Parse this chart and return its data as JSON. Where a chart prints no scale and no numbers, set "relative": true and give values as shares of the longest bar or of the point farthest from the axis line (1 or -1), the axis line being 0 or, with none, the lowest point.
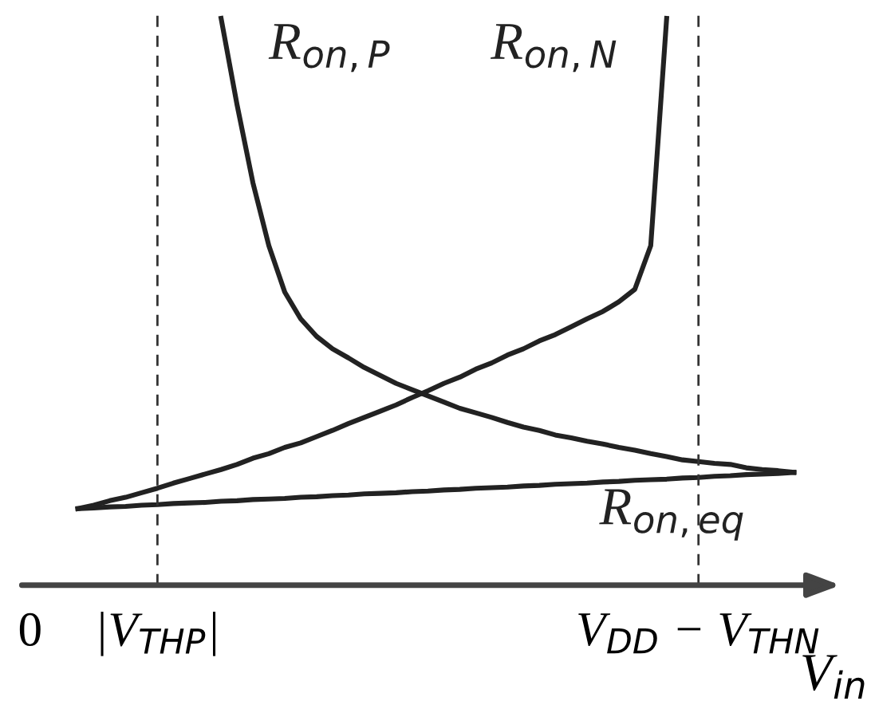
{
  "chart_data": {
    "type": "line",
    "relative": true,
    "xlabel": "V$_{in}$",
    "categories": [
      "0",
      null,
      null,
      null,
      null,
      null,
      null,
      null,
      "|V$_{THP}$|",
      null,
      null,
      null,
      null,
      null,
      null,
      null,
      null,
      null,
      null,
      null,
      null,
      null,
      null,
      null,
      null,
      null,
      null,
      null,
      null,
      null,
      null,
      null,
      null,
      null,
      null,
      null,
      null,
      null,
      null,
      null,
      null,
      null,
      "V$_{DD}$ − V$_{THN}$",
      null,
      null,
      null,
      null,
      null,
      null
    ],
    "tick_labels": "x",
    "grid": false,
    "legend": false,
    "marker": "none",
    "line_style": "solid",
    "ref_lines": [
      {
        "axis": "x",
        "value": "|V$_{THP}$|",
        "line_style": "dashed",
        "color": "#333333"
      },
      {
        "axis": "x",
        "value": "V$_{DD}$ − V$_{THN}$",
        "line_style": "dashed",
        "color": "#333333"
      }
    ],
    "series": [
      {
        "name": "R$_{on,P}$",
        "color": "#222222",
        "values": [
          null,
          null,
          null,
          null,
          null,
          null,
          null,
          null,
          null,
          null,
          null,
          null,
          1.0,
          0.848,
          0.71,
          0.599,
          0.517,
          0.47,
          0.439,
          0.417,
          0.401,
          0.384,
          0.37,
          0.356,
          0.345,
          0.334,
          0.323,
          0.312,
          0.304,
          0.296,
          0.287,
          0.279,
          0.273,
          0.265,
          0.26,
          0.254,
          0.249,
          0.243,
          0.238,
          0.232,
          0.227,
          0.221,
          0.218,
          0.215,
          0.213,
          0.207,
          0.204,
          0.202,
          0.199
        ]
      },
      {
        "name": "R$_{on,N}$",
        "color": "#222222",
        "values": [
          null,
          null,
          null,
          0.135,
          0.141,
          0.149,
          0.155,
          0.163,
          0.171,
          0.18,
          0.188,
          0.196,
          0.204,
          0.213,
          0.224,
          0.232,
          0.243,
          0.251,
          0.262,
          0.273,
          0.285,
          0.296,
          0.307,
          0.318,
          0.331,
          0.343,
          0.356,
          0.367,
          0.381,
          0.392,
          0.406,
          0.417,
          0.431,
          0.442,
          0.456,
          0.47,
          0.483,
          0.5,
          0.522,
          0.599,
          1.0,
          null,
          null,
          null,
          null,
          null,
          null,
          null,
          null
        ]
      },
      {
        "name": "R$_{on,eq}$",
        "color": "#222222",
        "values": [
          null,
          null,
          null,
          0.135,
          0.136,
          0.138,
          0.139,
          0.141,
          0.142,
          0.144,
          0.145,
          0.146,
          0.148,
          0.149,
          0.151,
          0.152,
          0.153,
          0.155,
          0.156,
          0.158,
          0.159,
          0.161,
          0.162,
          0.163,
          0.165,
          0.166,
          0.168,
          0.169,
          0.171,
          0.172,
          0.173,
          0.175,
          0.176,
          0.178,
          0.179,
          0.18,
          0.182,
          0.183,
          0.185,
          0.186,
          0.187,
          0.189,
          0.19,
          0.192,
          0.193,
          0.195,
          0.196,
          0.197,
          0.199
        ]
      }
    ]
  }
}
